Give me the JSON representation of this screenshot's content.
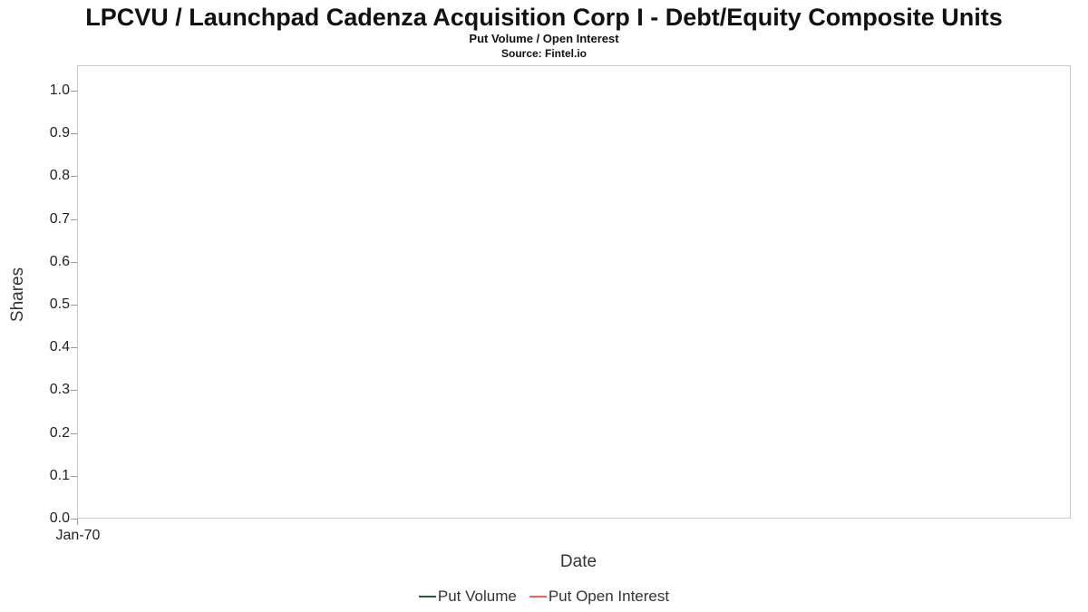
{
  "chart_data": {
    "type": "line",
    "title": "LPCVU / Launchpad Cadenza Acquisition Corp I - Debt/Equity Composite Units",
    "subtitle": "Put Volume / Open Interest",
    "source": "Source: Fintel.io",
    "xlabel": "Date",
    "ylabel": "Shares",
    "ylim": [
      0.0,
      1.0
    ],
    "yticks": [
      "0.0",
      "0.1",
      "0.2",
      "0.3",
      "0.4",
      "0.5",
      "0.6",
      "0.7",
      "0.8",
      "0.9",
      "1.0"
    ],
    "xticks": [
      "Jan-70"
    ],
    "grid": false,
    "legend_position": "bottom",
    "series": [
      {
        "name": "Put Volume",
        "color": "#2d5a3d",
        "x": [],
        "values": []
      },
      {
        "name": "Put Open Interest",
        "color": "#f4615c",
        "x": [],
        "values": []
      }
    ]
  }
}
